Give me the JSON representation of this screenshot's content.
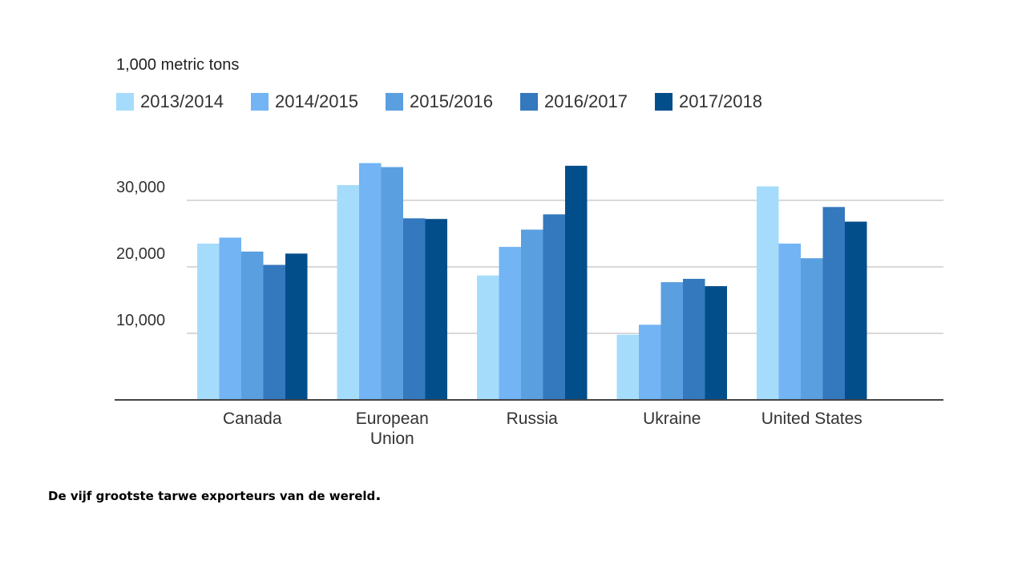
{
  "chart_data": {
    "type": "bar",
    "unit_label": "1,000 metric tons",
    "categories": [
      [
        "Canada"
      ],
      [
        "European",
        "Union"
      ],
      [
        "Russia"
      ],
      [
        "Ukraine"
      ],
      [
        "United States"
      ]
    ],
    "series": [
      {
        "name": "2013/2014",
        "color": "#a6dcfb",
        "values": [
          23500,
          32300,
          18700,
          9800,
          32100
        ]
      },
      {
        "name": "2014/2015",
        "color": "#72b4f4",
        "values": [
          24400,
          35600,
          23000,
          11300,
          23500
        ]
      },
      {
        "name": "2015/2016",
        "color": "#5a9fe0",
        "values": [
          22300,
          35000,
          25600,
          17700,
          21300
        ]
      },
      {
        "name": "2016/2017",
        "color": "#3478bd",
        "values": [
          20300,
          27300,
          27900,
          18200,
          29000
        ]
      },
      {
        "name": "2017/2018",
        "color": "#024e8b",
        "values": [
          22000,
          27200,
          35200,
          17100,
          26800
        ]
      }
    ],
    "yticks": [
      10000,
      20000,
      30000
    ],
    "ytick_labels": [
      "10,000",
      "20,000",
      "30,000"
    ],
    "ylim": [
      0,
      36000
    ],
    "grid": true,
    "legend_position": "top-left"
  },
  "caption": "De vijf grootste tarwe exporteurs van de wereld",
  "caption_period": "."
}
